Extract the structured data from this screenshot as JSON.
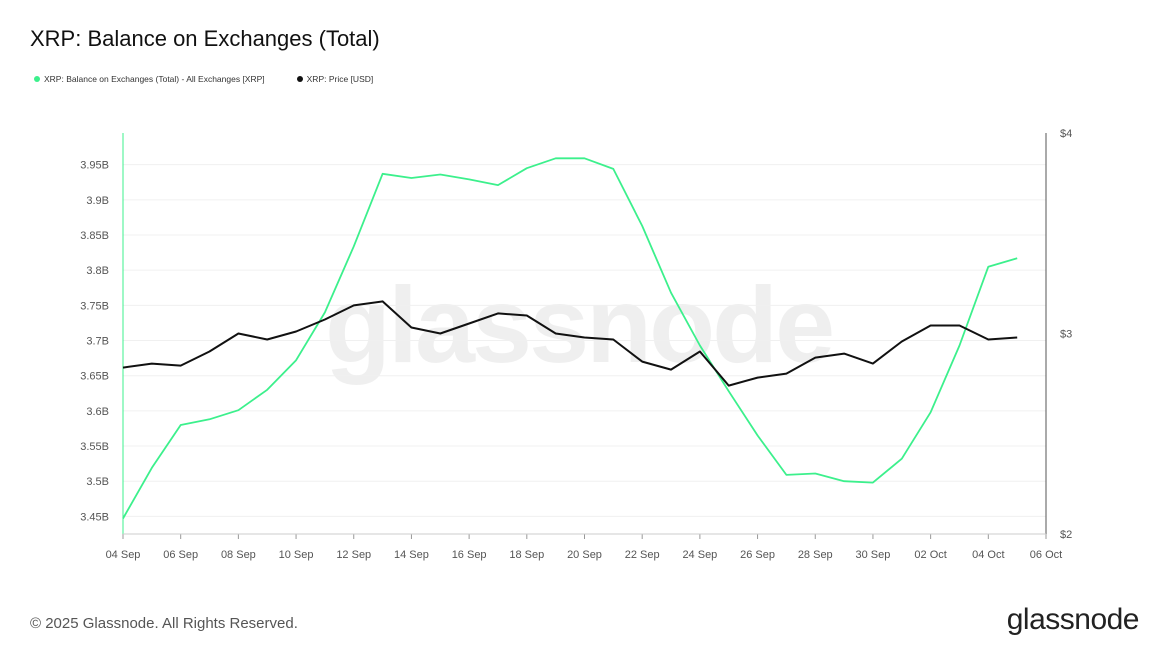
{
  "page": {
    "title": "XRP: Balance on Exchanges (Total)",
    "footer": "© 2025 Glassnode. All Rights Reserved.",
    "brand": "glassnode",
    "watermark": "glassnode"
  },
  "colors": {
    "balance": "#3cf08c",
    "price": "#111111",
    "grid": "#f0f0f0",
    "axis": "#888888"
  },
  "chart_data": {
    "type": "line",
    "title": "XRP: Balance on Exchanges (Total)",
    "x_ticks": [
      "04 Sep",
      "06 Sep",
      "08 Sep",
      "10 Sep",
      "12 Sep",
      "14 Sep",
      "16 Sep",
      "18 Sep",
      "20 Sep",
      "22 Sep",
      "24 Sep",
      "26 Sep",
      "28 Sep",
      "30 Sep",
      "02 Oct",
      "04 Oct",
      "06 Oct"
    ],
    "y_left_ticks": [
      "3.45B",
      "3.5B",
      "3.55B",
      "3.6B",
      "3.65B",
      "3.7B",
      "3.75B",
      "3.8B",
      "3.85B",
      "3.9B",
      "3.95B"
    ],
    "y_left_values": [
      3.45,
      3.5,
      3.55,
      3.6,
      3.65,
      3.7,
      3.75,
      3.8,
      3.85,
      3.9,
      3.95
    ],
    "y_left_range": [
      3.425,
      3.995
    ],
    "y_right_ticks": [
      "$2",
      "$3",
      "$4"
    ],
    "y_right_values": [
      2,
      3,
      4
    ],
    "y_right_range": [
      2,
      4
    ],
    "x_start": "2025-09-04",
    "x_end": "2025-10-06",
    "grid": true,
    "legend_position": "top-left",
    "series": [
      {
        "name": "XRP: Balance on Exchanges (Total) - All Exchanges [XRP]",
        "axis": "left",
        "unit": "B XRP",
        "x": [
          "2025-09-04",
          "2025-09-05",
          "2025-09-06",
          "2025-09-07",
          "2025-09-08",
          "2025-09-09",
          "2025-09-10",
          "2025-09-11",
          "2025-09-12",
          "2025-09-13",
          "2025-09-14",
          "2025-09-15",
          "2025-09-16",
          "2025-09-17",
          "2025-09-18",
          "2025-09-19",
          "2025-09-20",
          "2025-09-21",
          "2025-09-22",
          "2025-09-23",
          "2025-09-24",
          "2025-09-25",
          "2025-09-26",
          "2025-09-27",
          "2025-09-28",
          "2025-09-29",
          "2025-09-30",
          "2025-10-01",
          "2025-10-02",
          "2025-10-03",
          "2025-10-04",
          "2025-10-05"
        ],
        "values": [
          3.447,
          3.519,
          3.58,
          3.588,
          3.601,
          3.63,
          3.672,
          3.74,
          3.834,
          3.937,
          3.931,
          3.936,
          3.929,
          3.921,
          3.945,
          3.959,
          3.959,
          3.944,
          3.863,
          3.768,
          3.693,
          3.628,
          3.565,
          3.509,
          3.511,
          3.5,
          3.498,
          3.532,
          3.598,
          3.693,
          3.805,
          3.817
        ]
      },
      {
        "name": "XRP: Price [USD]",
        "axis": "right",
        "unit": "USD",
        "x": [
          "2025-09-04",
          "2025-09-05",
          "2025-09-06",
          "2025-09-07",
          "2025-09-08",
          "2025-09-09",
          "2025-09-10",
          "2025-09-11",
          "2025-09-12",
          "2025-09-13",
          "2025-09-14",
          "2025-09-15",
          "2025-09-16",
          "2025-09-17",
          "2025-09-18",
          "2025-09-19",
          "2025-09-20",
          "2025-09-21",
          "2025-09-22",
          "2025-09-23",
          "2025-09-24",
          "2025-09-25",
          "2025-09-26",
          "2025-09-27",
          "2025-09-28",
          "2025-09-29",
          "2025-09-30",
          "2025-10-01",
          "2025-10-02",
          "2025-10-03",
          "2025-10-04",
          "2025-10-05"
        ],
        "values": [
          2.83,
          2.85,
          2.84,
          2.91,
          3.0,
          2.97,
          3.01,
          3.07,
          3.14,
          3.16,
          3.03,
          3.0,
          3.05,
          3.1,
          3.09,
          3.0,
          2.98,
          2.97,
          2.86,
          2.82,
          2.91,
          2.74,
          2.78,
          2.8,
          2.88,
          2.9,
          2.85,
          2.96,
          3.04,
          3.04,
          2.97,
          2.98
        ]
      }
    ]
  }
}
